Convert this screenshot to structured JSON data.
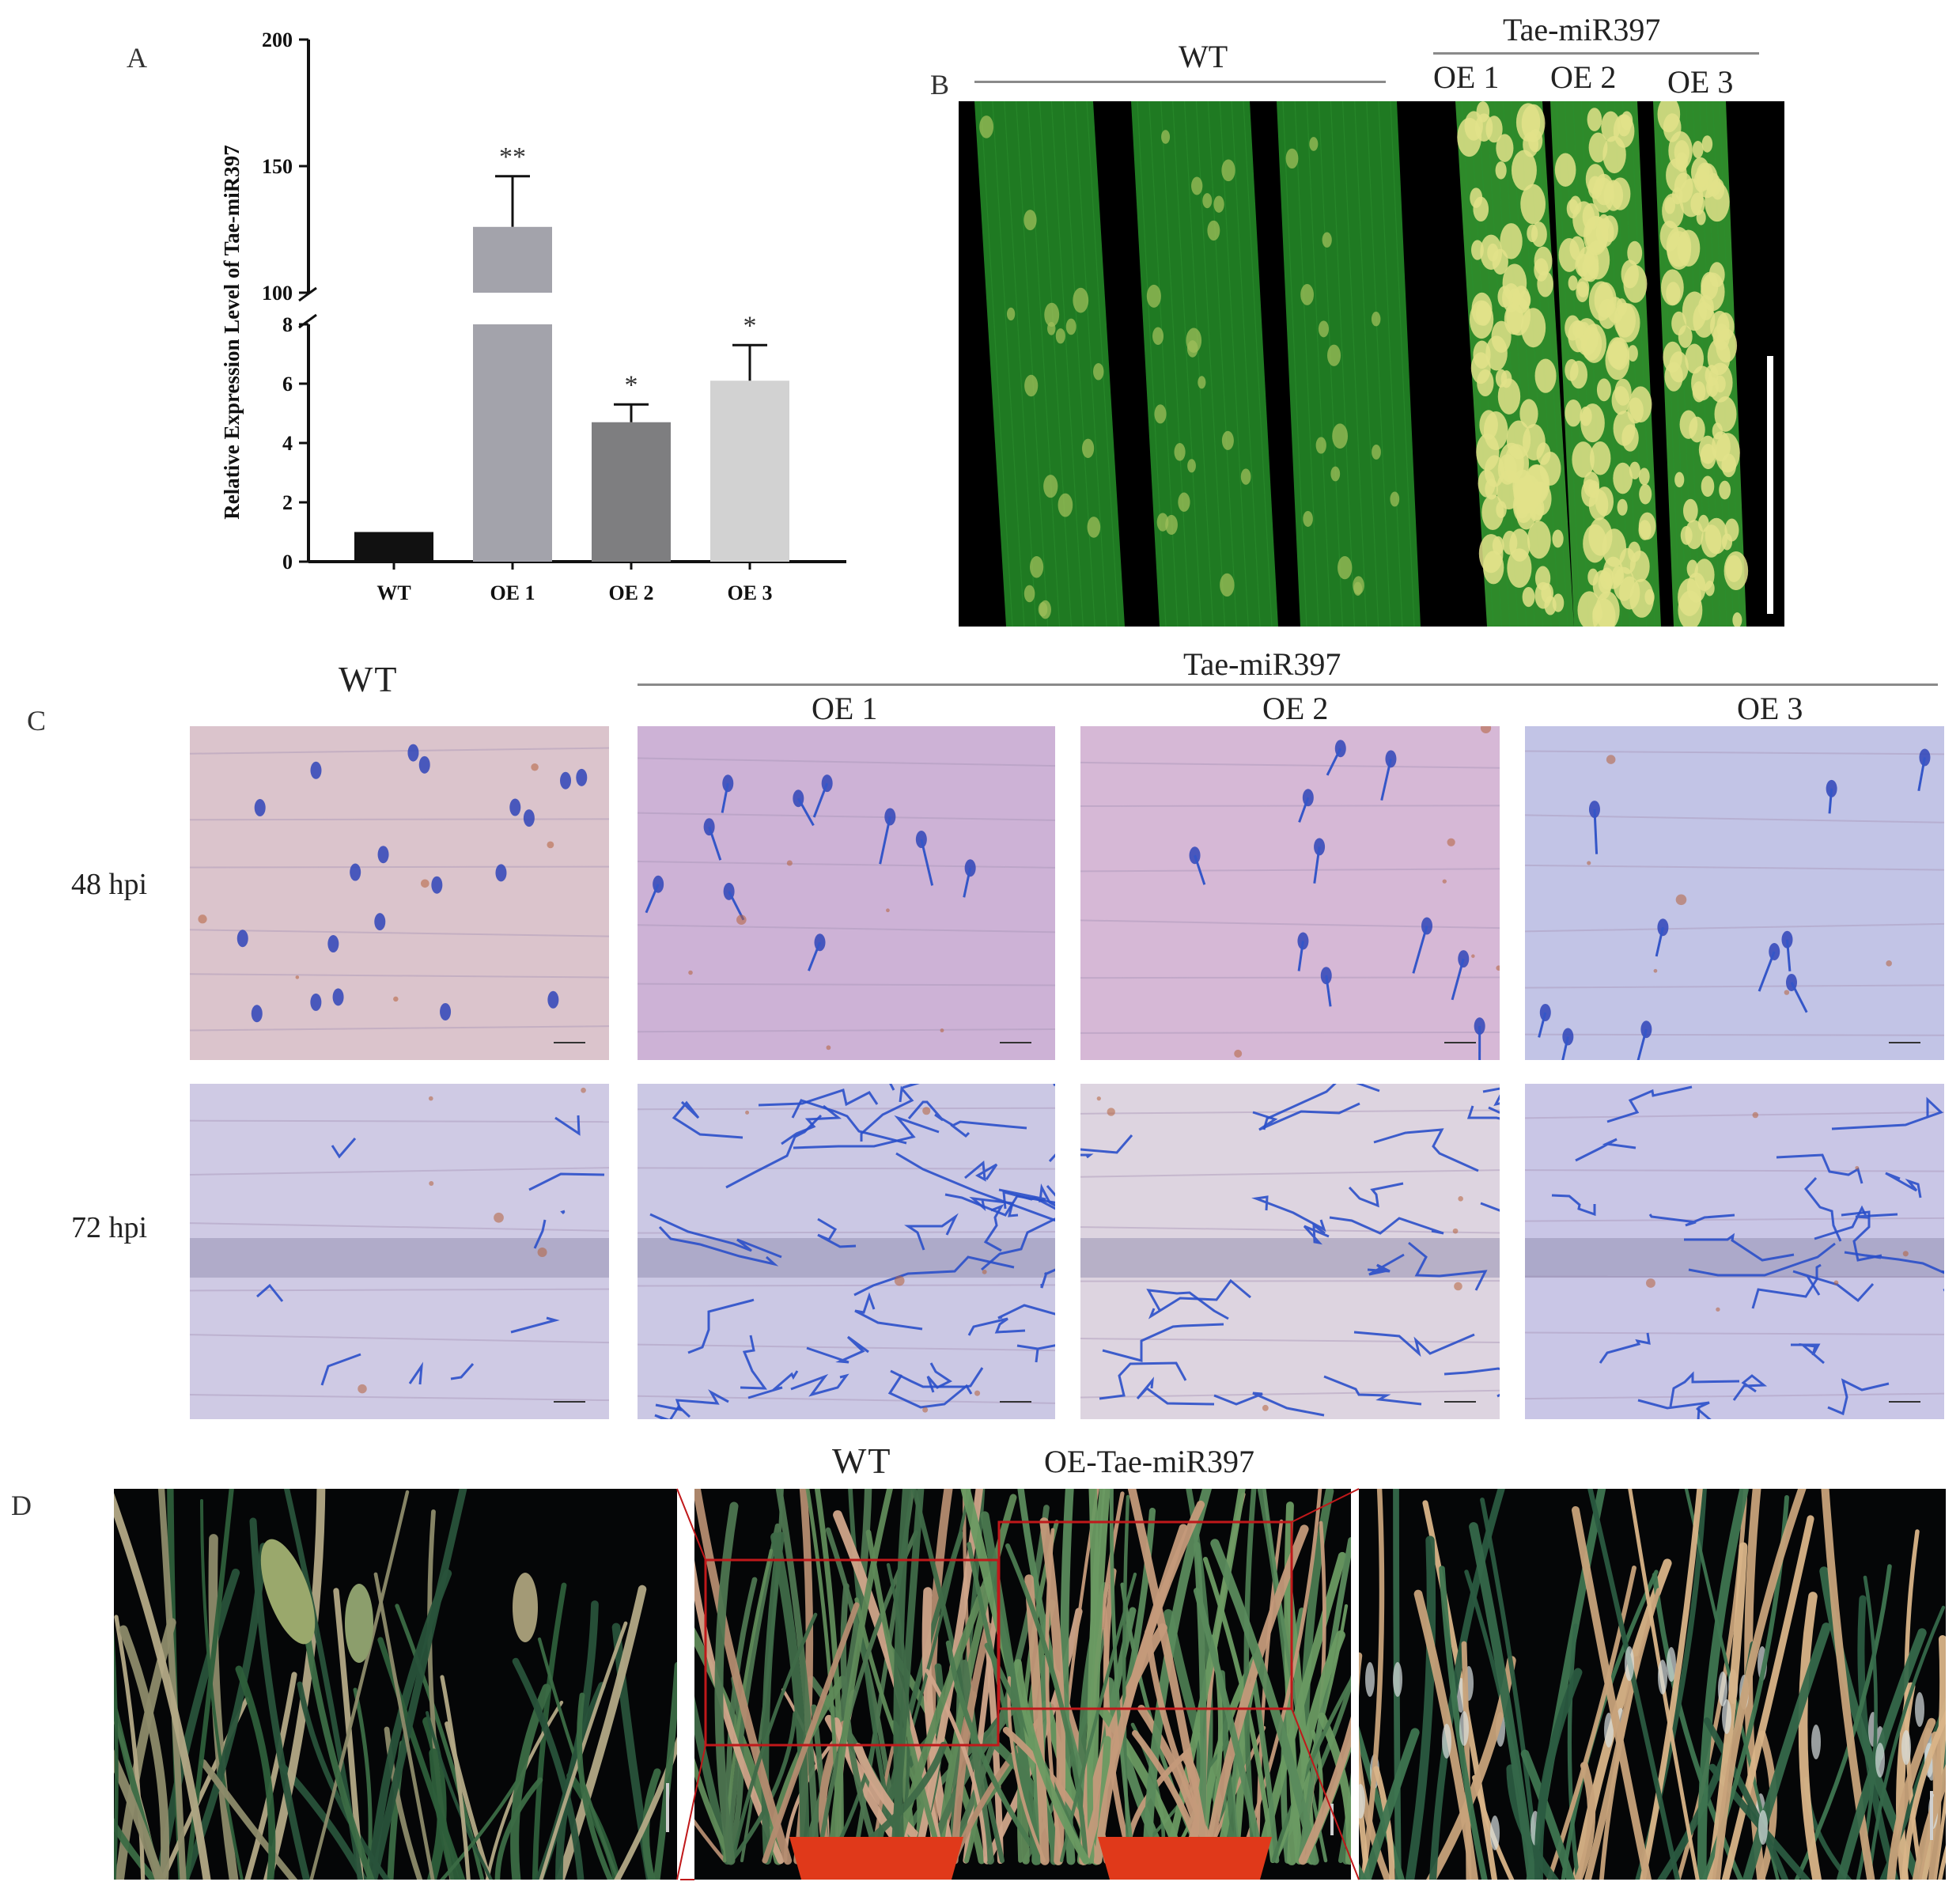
{
  "panels": {
    "A": {
      "letter": "A",
      "chart_data": {
        "type": "bar",
        "ylabel": "Relative Expression Level of Tae-miR397",
        "xlabel": "",
        "axis_break": {
          "lower": [
            0,
            8
          ],
          "upper": [
            100,
            200
          ]
        },
        "lower_ticks": [
          "0",
          "2",
          "4",
          "6",
          "8"
        ],
        "upper_ticks": [
          "100",
          "150",
          "200"
        ],
        "categories": [
          "WT",
          "OE 1",
          "OE 2",
          "OE 3"
        ],
        "values": [
          1,
          126,
          4.7,
          6.1
        ],
        "errors": [
          0,
          20,
          0.6,
          1.2
        ],
        "significance": [
          "",
          "**",
          "*",
          "*"
        ],
        "colors": [
          "#111111",
          "#a3a3ab",
          "#7e7e80",
          "#d2d2d2"
        ]
      }
    },
    "B": {
      "letter": "B",
      "group_wt": "WT",
      "group_oe": "Tae-miR397",
      "lines": [
        "OE 1",
        "OE 2",
        "OE 3"
      ]
    },
    "C": {
      "letter": "C",
      "col_wt": "WT",
      "group_oe": "Tae-miR397",
      "cols_oe": [
        "OE 1",
        "OE 2",
        "OE 3"
      ],
      "rows": [
        "48 hpi",
        "72 hpi"
      ]
    },
    "D": {
      "letter": "D",
      "label_wt": "WT",
      "label_oe": "OE-Tae-miR397"
    }
  },
  "colors": {
    "leaf_green": "#1f7a22",
    "lesion": "#e8e07a",
    "stain_blue": "#2a4fc9",
    "tissue_pink": "#d8bfd6",
    "tissue_lavender": "#cbc4e4",
    "pot_red": "#e23a14",
    "inset_box": "#c0181a"
  }
}
